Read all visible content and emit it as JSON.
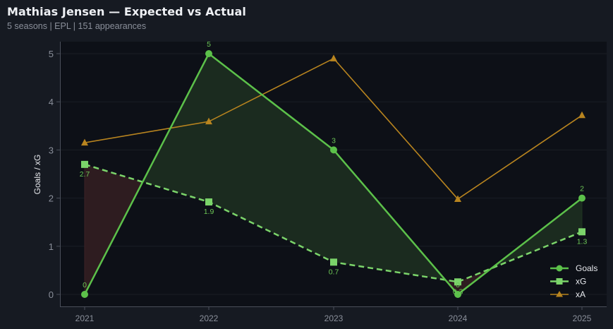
{
  "header": {
    "title": "Mathias Jensen — Expected vs Actual",
    "subtitle": "5 seasons | EPL | 151 appearances"
  },
  "colors": {
    "page_bg": "#161a22",
    "plot_bg": "#0d1017",
    "goals": "#5cc14a",
    "xg": "#7bd46a",
    "xa": "#b8841f",
    "over_fill": "#1b2b1f",
    "under_fill": "#2e1c20",
    "axis": "#4a4f5a",
    "tick_text": "#8a8f9a"
  },
  "chart_data": {
    "type": "line",
    "title": "Mathias Jensen — Expected vs Actual",
    "subtitle": "5 seasons | EPL | 151 appearances",
    "xlabel": "",
    "ylabel": "Goals / xG",
    "categories": [
      "2021",
      "2022",
      "2023",
      "2024",
      "2025"
    ],
    "series": [
      {
        "name": "Goals",
        "values": [
          0,
          5,
          3,
          0,
          2
        ],
        "marker": "circle",
        "style": "solid",
        "labels": [
          "0",
          "5",
          "3",
          "0",
          "2"
        ]
      },
      {
        "name": "xG",
        "values": [
          2.7,
          1.92,
          0.67,
          0.26,
          1.3
        ],
        "marker": "square",
        "style": "dashed",
        "labels": [
          "2.7",
          "1.9",
          "0.7",
          "0.3",
          "1.3"
        ]
      },
      {
        "name": "xA",
        "values": [
          3.15,
          3.59,
          4.9,
          1.98,
          3.72
        ],
        "marker": "triangle",
        "style": "solid"
      }
    ],
    "fill_between": {
      "series_a": "Goals",
      "series_b": "xG",
      "above_color": "green",
      "below_color": "red"
    },
    "yticks": [
      "0",
      "1",
      "2",
      "3",
      "4",
      "5"
    ],
    "ylim": [
      -0.25,
      5.25
    ],
    "grid": "horizontal, faint",
    "legend_position": "lower right"
  }
}
